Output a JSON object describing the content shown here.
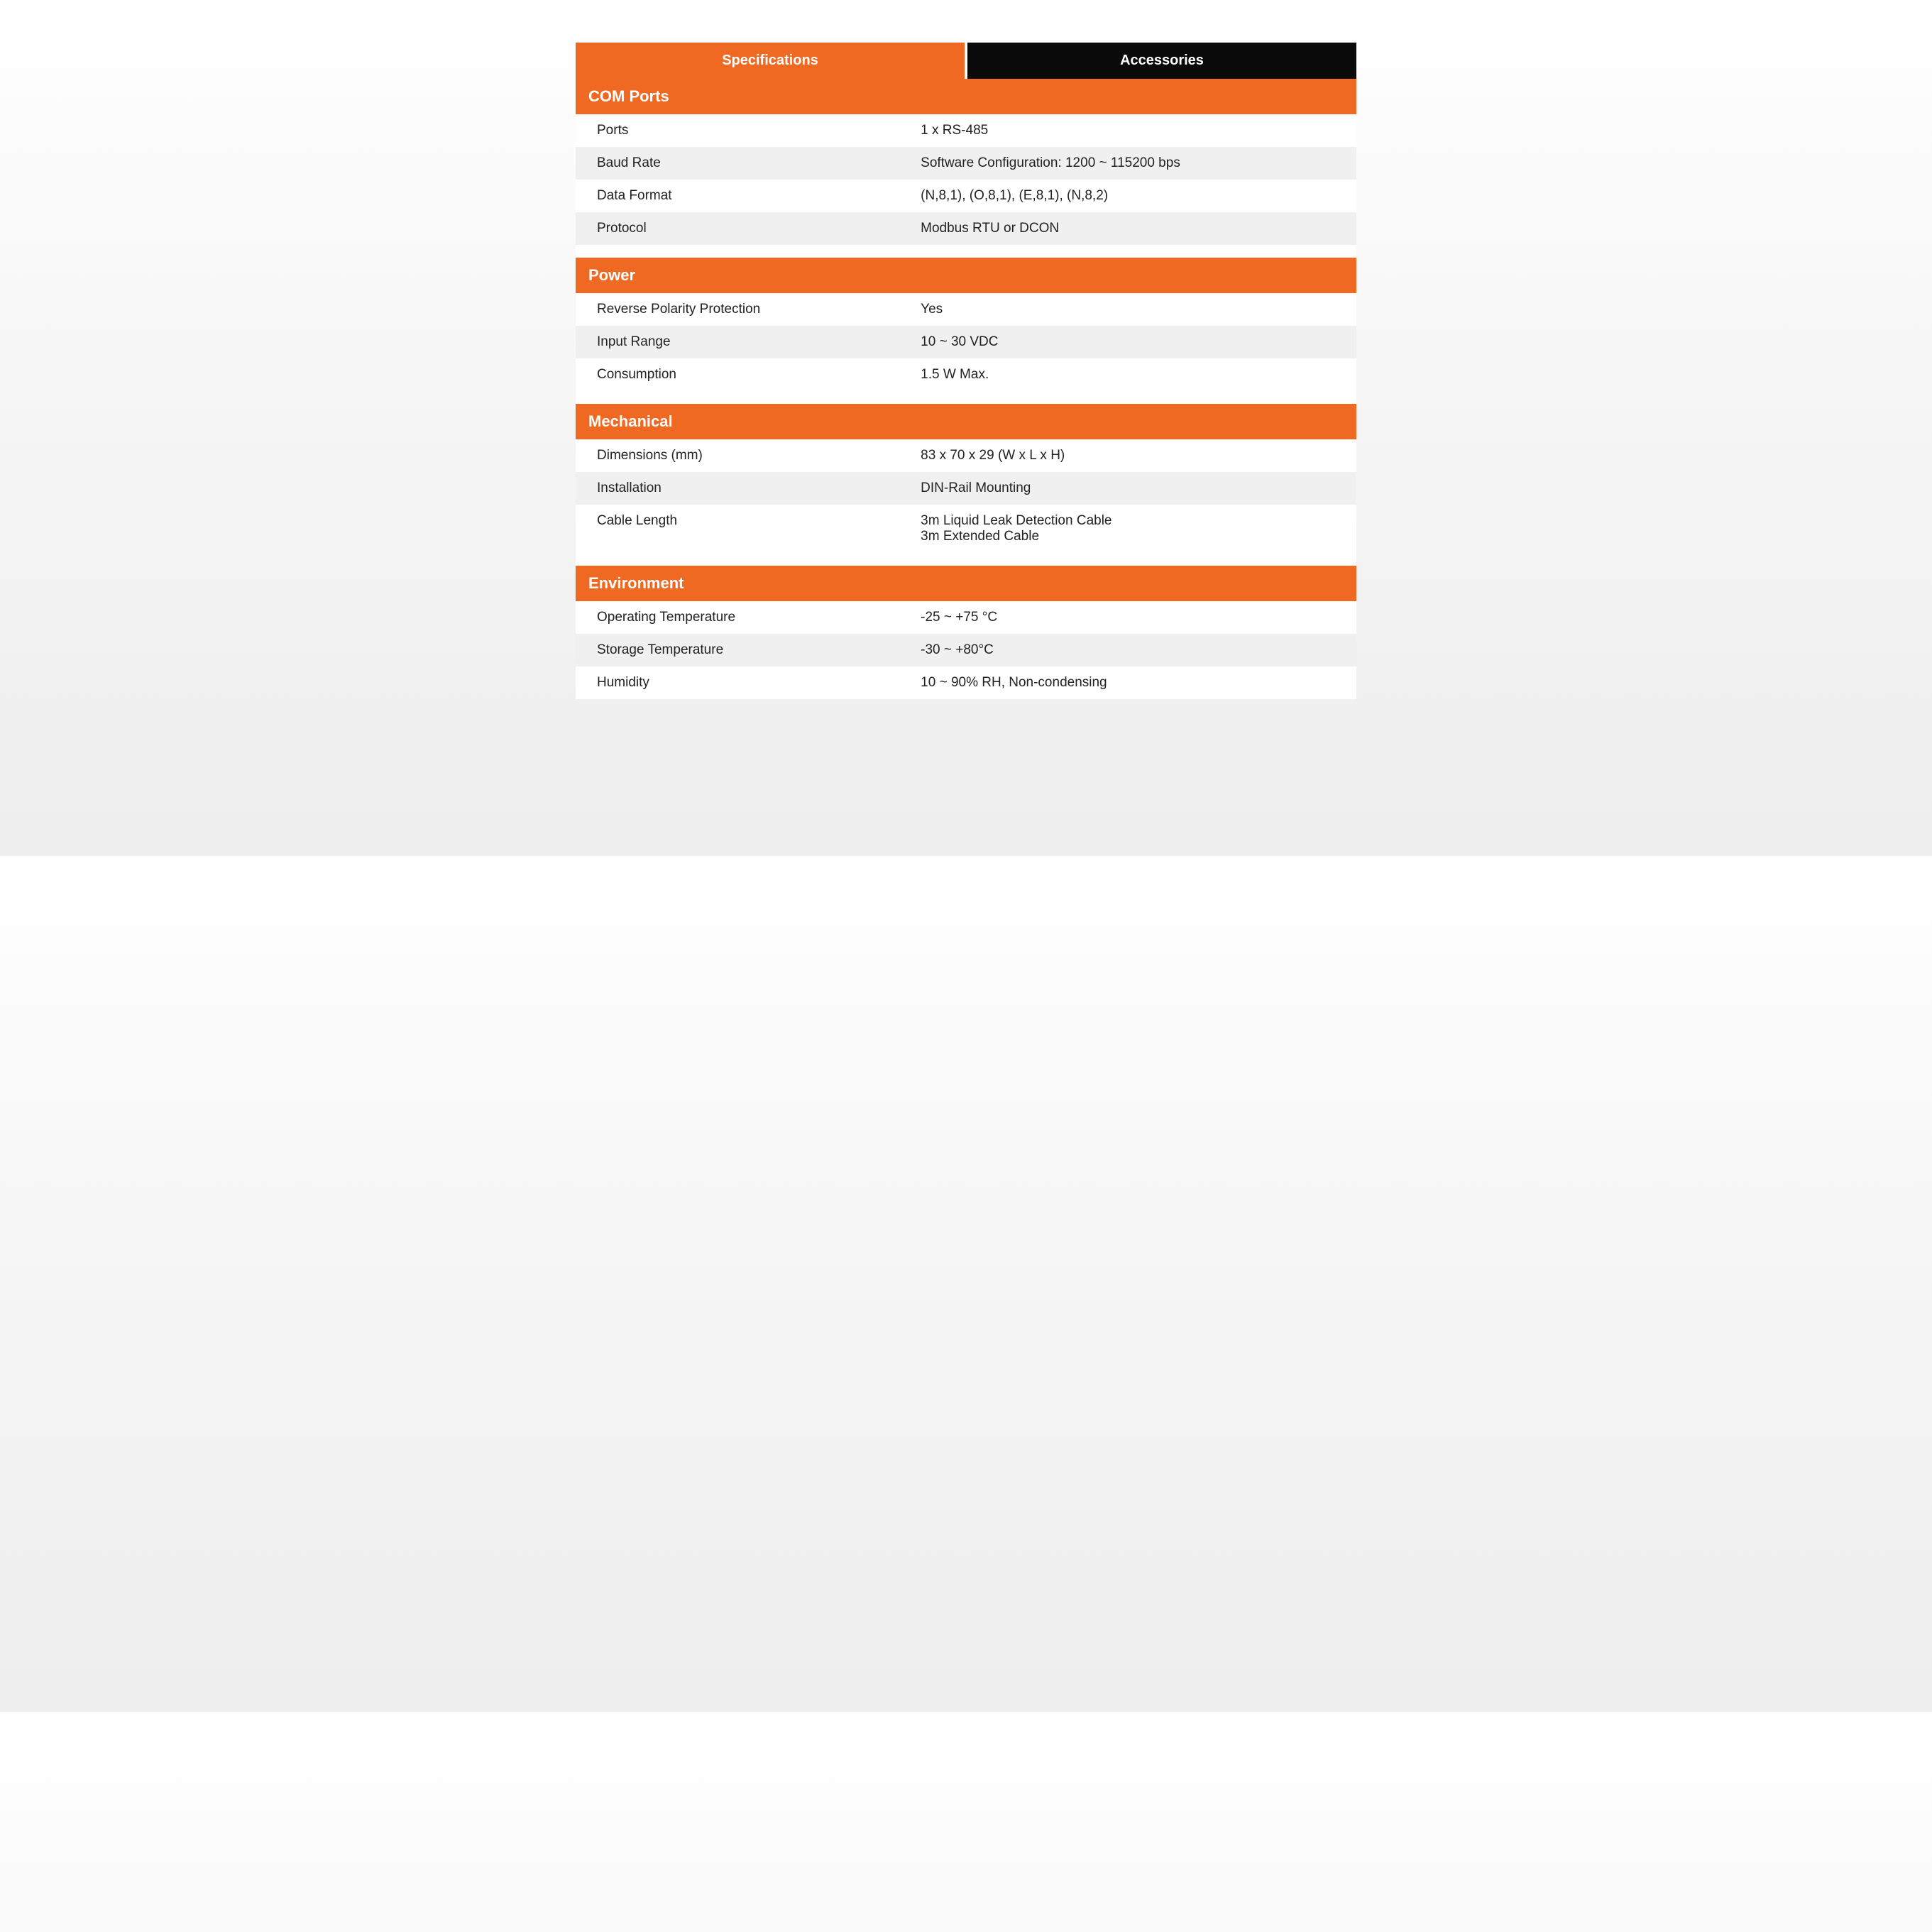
{
  "colors": {
    "accent": "#ef6923",
    "tab_inactive_bg": "#0a0a0a",
    "tab_text": "#ffffff",
    "row_white": "#ffffff",
    "row_gray": "#f0f0f0",
    "text": "#222222"
  },
  "tabs": {
    "active": "Specifications",
    "inactive": "Accessories"
  },
  "sections": [
    {
      "title": "COM Ports",
      "rows": [
        {
          "label": "Ports",
          "value": "1 x RS-485",
          "bg": "white"
        },
        {
          "label": "Baud Rate",
          "value": "Software Configuration: 1200 ~ 115200 bps",
          "bg": "gray"
        },
        {
          "label": "Data Format",
          "value": "(N,8,1), (O,8,1), (E,8,1), (N,8,2)",
          "bg": "white"
        },
        {
          "label": "Protocol",
          "value": "Modbus RTU or DCON",
          "bg": "gray"
        }
      ]
    },
    {
      "title": "Power",
      "rows": [
        {
          "label": "Reverse Polarity Protection",
          "value": "Yes",
          "bg": "white"
        },
        {
          "label": "Input Range",
          "value": "10 ~ 30 VDC",
          "bg": "gray"
        },
        {
          "label": "Consumption",
          "value": "1.5 W Max.",
          "bg": "white"
        }
      ]
    },
    {
      "title": "Mechanical",
      "rows": [
        {
          "label": "Dimensions (mm)",
          "value": "83 x 70 x 29 (W x L x H)",
          "bg": "white"
        },
        {
          "label": "Installation",
          "value": "DIN-Rail Mounting",
          "bg": "gray"
        },
        {
          "label": "Cable Length",
          "value": "3m Liquid Leak Detection Cable\n3m Extended Cable",
          "bg": "white"
        }
      ]
    },
    {
      "title": "Environment",
      "rows": [
        {
          "label": "Operating Temperature",
          "value": "-25 ~ +75 °C",
          "bg": "white"
        },
        {
          "label": "Storage Temperature",
          "value": "-30 ~ +80°C",
          "bg": "gray"
        },
        {
          "label": "Humidity",
          "value": "10 ~ 90% RH, Non-condensing",
          "bg": "white"
        }
      ]
    }
  ]
}
